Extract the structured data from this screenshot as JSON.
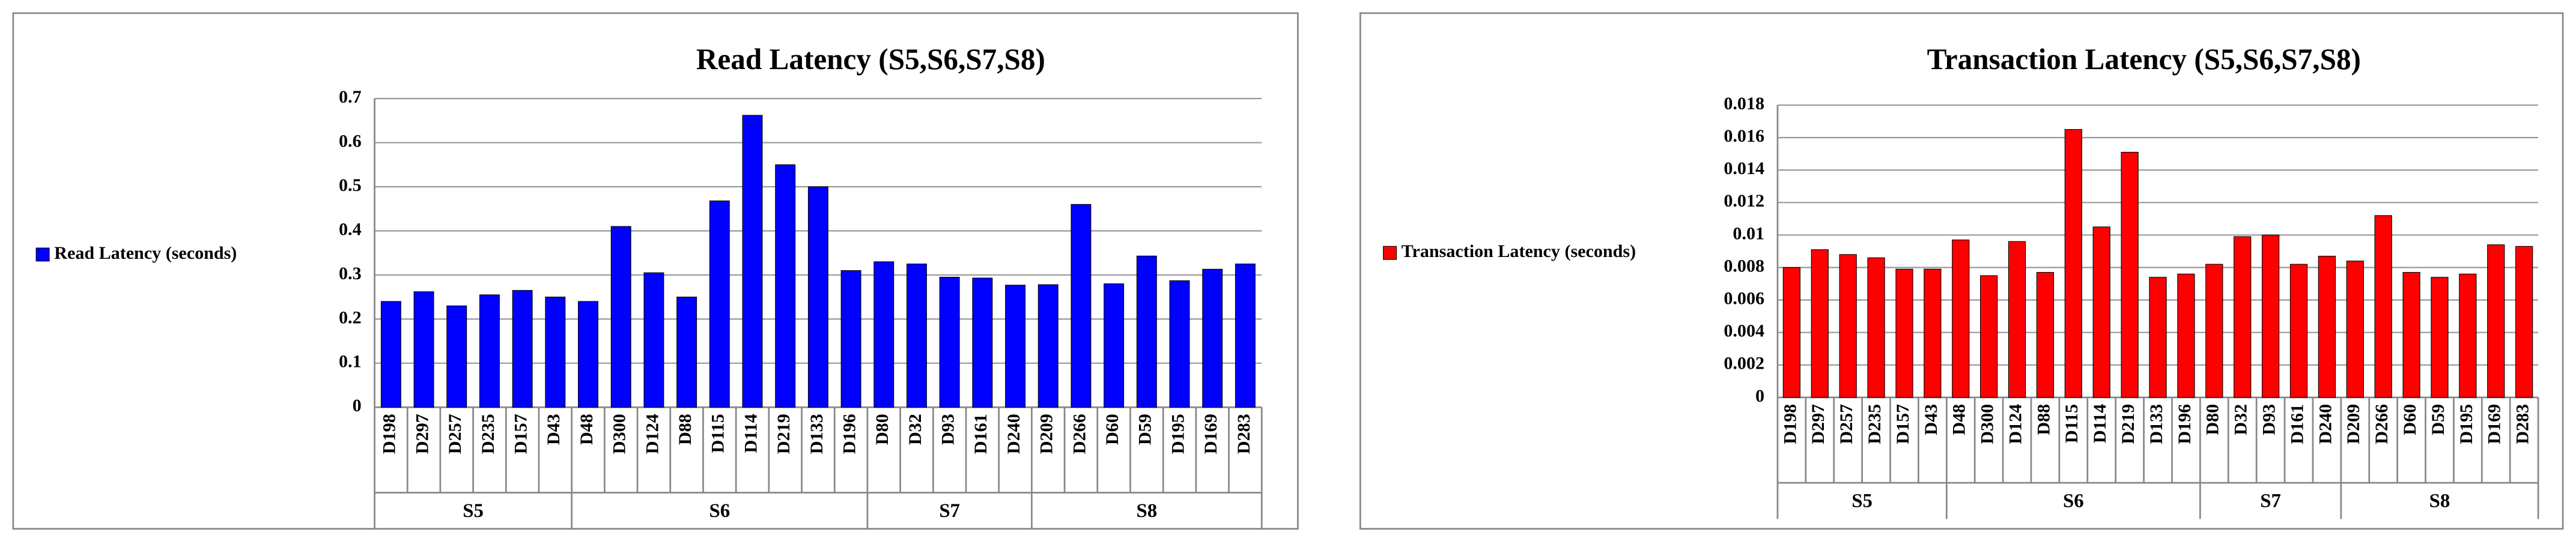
{
  "chart_data": [
    {
      "type": "bar",
      "title": "Read Latency (S5,S6,S7,S8)",
      "groups": [
        {
          "label": "S5",
          "categories": [
            "D198",
            "D297",
            "D257",
            "D235",
            "D157",
            "D43"
          ]
        },
        {
          "label": "S6",
          "categories": [
            "D48",
            "D300",
            "D124",
            "D88",
            "D115",
            "D114",
            "D219",
            "D133",
            "D196"
          ]
        },
        {
          "label": "S7",
          "categories": [
            "D80",
            "D32",
            "D93",
            "D161",
            "D240"
          ]
        },
        {
          "label": "S8",
          "categories": [
            "D209",
            "D266",
            "D60",
            "D59",
            "D195",
            "D169",
            "D283"
          ]
        }
      ],
      "series": [
        {
          "name": "Read Latency (seconds)",
          "color": "#0000ff",
          "values": [
            0.24,
            0.262,
            0.23,
            0.255,
            0.265,
            0.25,
            0.24,
            0.41,
            0.305,
            0.25,
            0.468,
            0.662,
            0.55,
            0.5,
            0.31,
            0.33,
            0.325,
            0.295,
            0.293,
            0.277,
            0.278,
            0.46,
            0.28,
            0.343,
            0.287,
            0.313,
            0.325
          ]
        }
      ],
      "ylim": [
        0,
        0.7
      ],
      "yticks": [
        0,
        0.1,
        0.2,
        0.3,
        0.4,
        0.5,
        0.6,
        0.7
      ],
      "grid": true,
      "legend": "left"
    },
    {
      "type": "bar",
      "title": "Transaction Latency (S5,S6,S7,S8)",
      "groups": [
        {
          "label": "S5",
          "categories": [
            "D198",
            "D297",
            "D257",
            "D235",
            "D157",
            "D43"
          ]
        },
        {
          "label": "S6",
          "categories": [
            "D48",
            "D300",
            "D124",
            "D88",
            "D115",
            "D114",
            "D219",
            "D133",
            "D196"
          ]
        },
        {
          "label": "S7",
          "categories": [
            "D80",
            "D32",
            "D93",
            "D161",
            "D240"
          ]
        },
        {
          "label": "S8",
          "categories": [
            "D209",
            "D266",
            "D60",
            "D59",
            "D195",
            "D169",
            "D283"
          ]
        }
      ],
      "series": [
        {
          "name": "Transaction Latency (seconds)",
          "color": "#ff0000",
          "values": [
            0.008,
            0.0091,
            0.0088,
            0.0086,
            0.0079,
            0.0079,
            0.0097,
            0.0075,
            0.0096,
            0.0077,
            0.0165,
            0.0105,
            0.0151,
            0.0074,
            0.0076,
            0.0082,
            0.0099,
            0.01,
            0.0082,
            0.0087,
            0.0084,
            0.0112,
            0.0077,
            0.0074,
            0.0076,
            0.0094,
            0.0093
          ]
        }
      ],
      "ylim": [
        0,
        0.018
      ],
      "yticks": [
        0,
        0.002,
        0.004,
        0.006,
        0.008,
        0.01,
        0.012,
        0.014,
        0.016,
        0.018
      ],
      "grid": true,
      "legend": "left"
    }
  ]
}
